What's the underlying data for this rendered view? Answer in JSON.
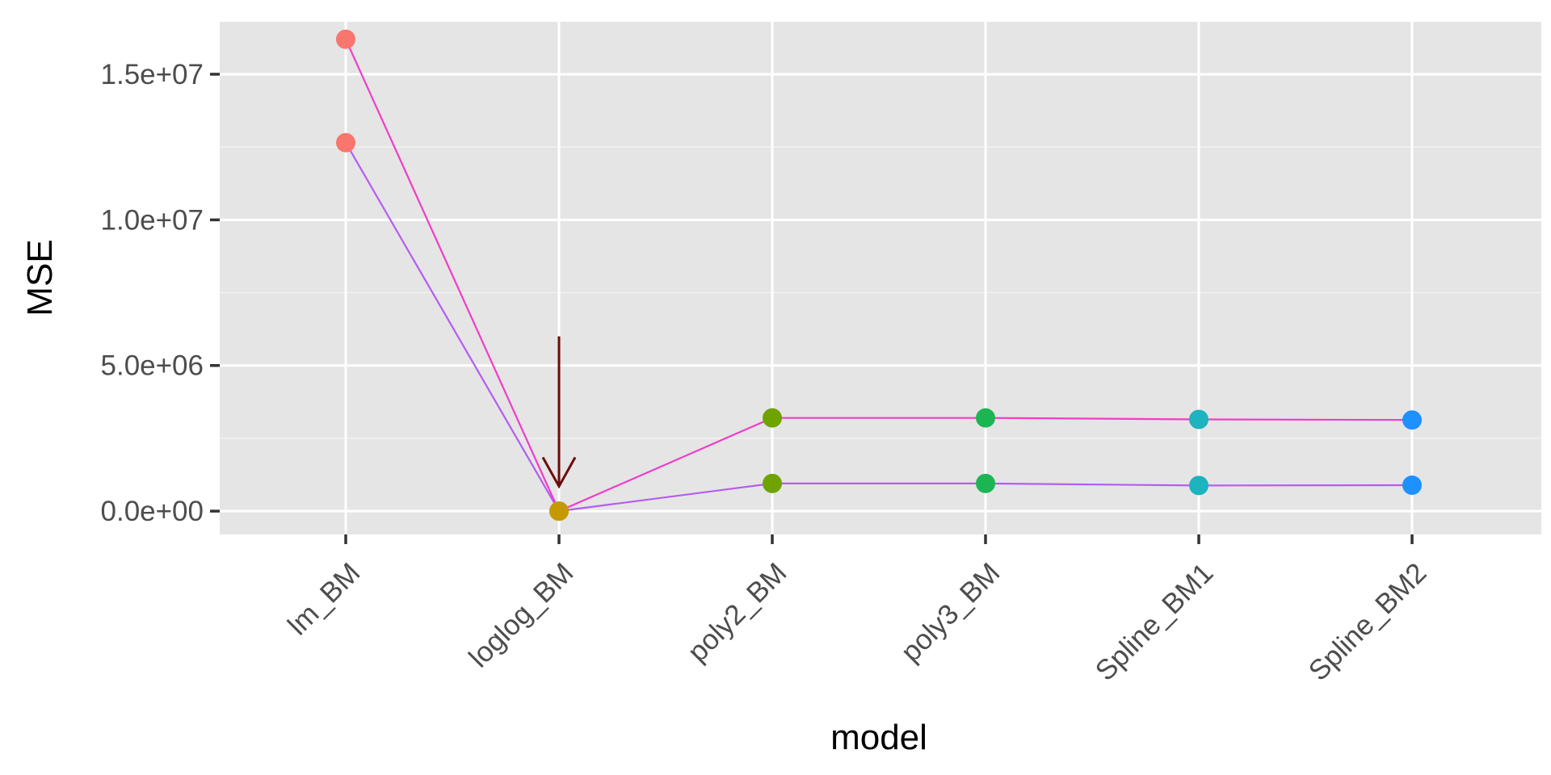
{
  "chart_data": {
    "type": "line",
    "title": "",
    "xlabel": "model",
    "ylabel": "MSE",
    "categories": [
      "lm_BM",
      "loglog_BM",
      "poly2_BM",
      "poly3_BM",
      "Spline_BM1",
      "Spline_BM2"
    ],
    "ylim": [
      -800000,
      16800000
    ],
    "y_ticks": [
      0,
      5000000,
      10000000,
      15000000
    ],
    "y_tick_labels": [
      "0.0e+00",
      "5.0e+06",
      "1.0e+07",
      "1.5e+07"
    ],
    "grid": true,
    "legend": "none",
    "series": [
      {
        "color": "#f03dc8",
        "values": [
          16200000,
          0,
          3200000,
          3200000,
          3150000,
          3130000
        ]
      },
      {
        "color": "#b45cf2",
        "values": [
          12650000,
          0,
          950000,
          950000,
          880000,
          890000
        ]
      }
    ],
    "point_colors": [
      "#f8766d",
      "#c49a00",
      "#6fa300",
      "#1db553",
      "#1db3bf",
      "#1e90ff"
    ],
    "annotation": {
      "type": "arrow",
      "category": "loglog_BM",
      "y_from": 6000000,
      "y_to": 850000,
      "color": "#6b0c0c"
    }
  }
}
